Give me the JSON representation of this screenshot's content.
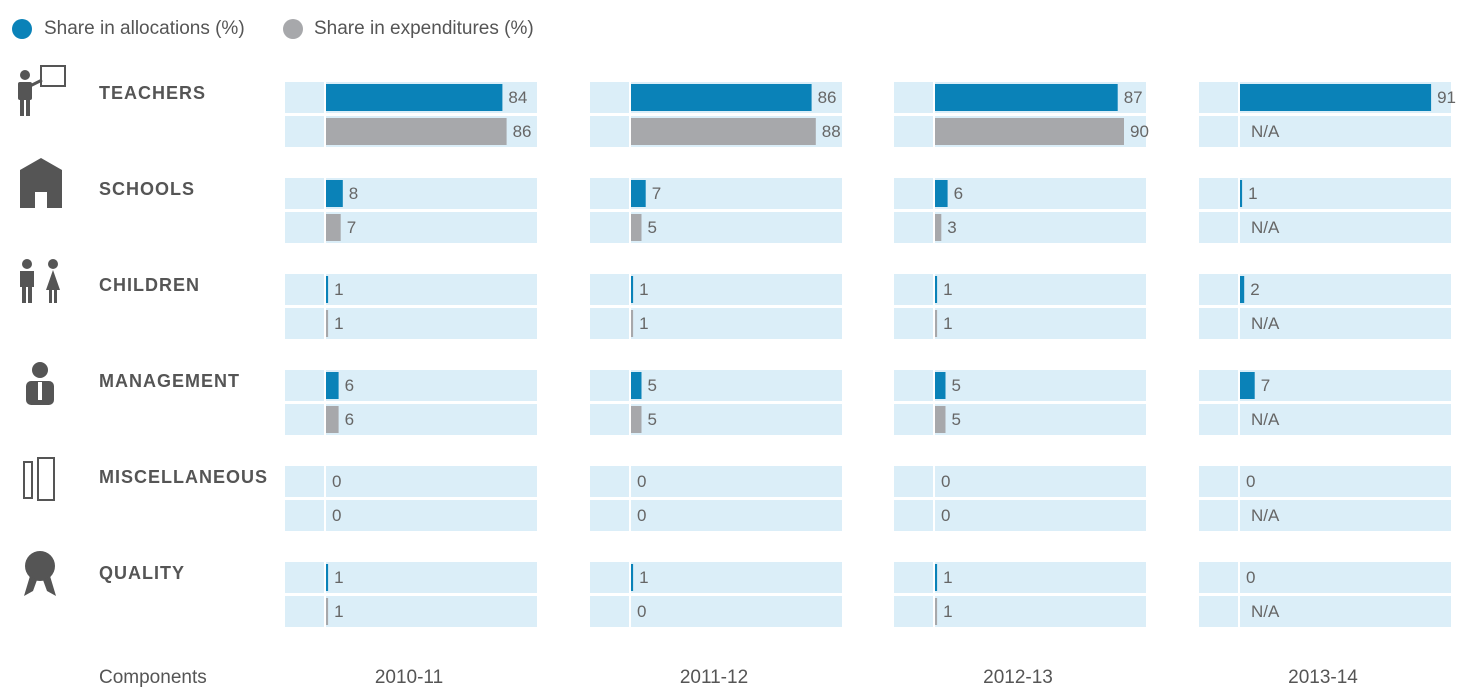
{
  "chart_data": {
    "type": "bar",
    "categories": [
      "TEACHERS",
      "SCHOOLS",
      "CHILDREN",
      "MANAGEMENT",
      "MISCELLANEOUS",
      "QUALITY"
    ],
    "category_axis_label": "Components",
    "series": [
      {
        "name": "Share in allocations (%)",
        "color": "#0a82b8"
      },
      {
        "name": "Share in expenditures (%)",
        "color": "#a7a8ab"
      }
    ],
    "xlim": [
      0,
      100
    ],
    "missing_label": "N/A",
    "panels": [
      {
        "title": "2010-11",
        "values": [
          [
            84,
            8,
            1,
            6,
            0,
            1
          ],
          [
            86,
            7,
            1,
            6,
            0,
            1
          ]
        ]
      },
      {
        "title": "2011-12",
        "values": [
          [
            86,
            7,
            1,
            5,
            0,
            1
          ],
          [
            88,
            5,
            1,
            5,
            0,
            0
          ]
        ]
      },
      {
        "title": "2012-13",
        "values": [
          [
            87,
            6,
            1,
            5,
            0,
            1
          ],
          [
            90,
            3,
            1,
            5,
            0,
            1
          ]
        ]
      },
      {
        "title": "2013-14",
        "values": [
          [
            91,
            1,
            2,
            7,
            0,
            0
          ],
          [
            null,
            null,
            null,
            null,
            null,
            null
          ]
        ]
      }
    ]
  }
}
